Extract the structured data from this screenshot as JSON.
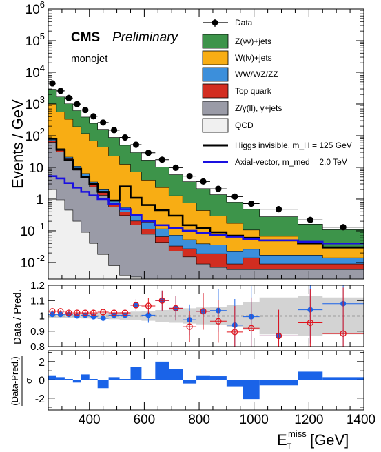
{
  "chart_data": [
    {
      "type": "area",
      "title": "",
      "xlabel": "E_T^miss [GeV]",
      "ylabel": "Events / GeV",
      "yscale": "log",
      "xlim": [
        250,
        1400
      ],
      "ylim": [
        0.003,
        1000000
      ],
      "y_ticks": [
        "10^-2",
        "10^-1",
        "1",
        "10",
        "10^2",
        "10^3",
        "10^4",
        "10^5",
        "10^6"
      ],
      "text": {
        "cms": "CMS",
        "preliminary": "Preliminary",
        "region": "monojet"
      },
      "bin_edges": [
        250,
        280,
        310,
        340,
        370,
        400,
        430,
        470,
        510,
        550,
        590,
        640,
        690,
        740,
        790,
        840,
        900,
        960,
        1020,
        1160,
        1250,
        1400
      ],
      "stack_order_bottom_to_top": [
        "QCD",
        "Z/γ(ll), γ+jets",
        "Top quark",
        "WW/WZ/ZZ",
        "W(lν)+jets",
        "Z(νν)+jets"
      ],
      "series": [
        {
          "name": "QCD",
          "color": "#f0f0f0",
          "values": [
            2.0,
            0.95,
            0.45,
            0.2,
            0.09,
            0.04,
            0.018,
            0.008,
            0.004,
            0.0035,
            0.003,
            0.003,
            0.003,
            0.003,
            0.003,
            0.003,
            0.003,
            0.003,
            0.003,
            0.003,
            0.003
          ]
        },
        {
          "name": "Z/γ(ll), γ+jets",
          "color": "#9a9ba7",
          "values": [
            60,
            30,
            16,
            8,
            4.5,
            2.4,
            1.3,
            0.55,
            0.3,
            0.15,
            0.075,
            0.04,
            0.02,
            0.012,
            0.006,
            0.004,
            0.003,
            0.003,
            0.003,
            0.003,
            0.003
          ]
        },
        {
          "name": "Top quark",
          "color": "#d22d20",
          "values": [
            8,
            4,
            2.2,
            1.2,
            0.8,
            0.45,
            0.28,
            0.14,
            0.09,
            0.05,
            0.035,
            0.022,
            0.01,
            0.012,
            0.01,
            0.012,
            0.003,
            0.008,
            0.003,
            0.003,
            0.003
          ]
        },
        {
          "name": "WW/WZ/ZZ",
          "color": "#3c8fdb",
          "values": [
            8,
            4,
            2.5,
            1.5,
            1.0,
            0.6,
            0.38,
            0.22,
            0.15,
            0.1,
            0.07,
            0.05,
            0.04,
            0.025,
            0.02,
            0.017,
            0.013,
            0.012,
            0.008,
            0.008,
            0.005
          ]
        },
        {
          "name": "W(lν)+jets",
          "color": "#f8ad14",
          "values": [
            940,
            530,
            310,
            180,
            110,
            66,
            42,
            22,
            12,
            7,
            3.8,
            2.2,
            1.2,
            0.7,
            0.4,
            0.26,
            0.15,
            0.08,
            0.05,
            0.025,
            0.014
          ]
        },
        {
          "name": "Z(νν)+jets",
          "color": "#3d944a",
          "values": [
            1900,
            1100,
            680,
            430,
            270,
            175,
            115,
            65,
            37,
            22,
            13,
            7.8,
            4.6,
            2.8,
            1.7,
            1.08,
            0.63,
            0.37,
            0.21,
            0.12,
            0.08
          ]
        }
      ],
      "data": {
        "name": "Data",
        "x": [
          265,
          295,
          325,
          355,
          385,
          415,
          450,
          490,
          530,
          570,
          615,
          665,
          715,
          765,
          815,
          870,
          930,
          990,
          1090,
          1205,
          1325
        ],
        "y": [
          4500,
          2600,
          1550,
          990,
          650,
          410,
          260,
          150,
          88,
          52,
          29,
          17.5,
          9.8,
          5.3,
          3.6,
          2.1,
          1.2,
          0.72,
          0.48,
          0.22,
          0.13
        ]
      },
      "signals": [
        {
          "name": "Higgs invisible, m_H = 125 GeV",
          "color": "#000000",
          "values": [
            80,
            36,
            17,
            9,
            5,
            3,
            1.7,
            0.9,
            2.5,
            1.1,
            0.65,
            0.45,
            0.3,
            0.15,
            0.12,
            0.09,
            0.07,
            0.06,
            0.05,
            0.04,
            0.03
          ]
        },
        {
          "name": "Axial-vector, m_med = 2.0 TeV",
          "color": "#1a10e0",
          "values": [
            5.3,
            4.5,
            3.2,
            2.3,
            1.7,
            1.3,
            1.0,
            0.7,
            0.48,
            0.32,
            0.2,
            0.15,
            0.12,
            0.1,
            0.085,
            0.075,
            0.065,
            0.055,
            0.05,
            0.045,
            0.04
          ]
        }
      ],
      "legend": {
        "placement": "top-right",
        "entries": [
          {
            "label": "Data",
            "style": "marker"
          },
          {
            "label": "Z(νν)+jets",
            "style": "fill",
            "color": "#3d944a"
          },
          {
            "label": "W(lν)+jets",
            "style": "fill",
            "color": "#f8ad14"
          },
          {
            "label": "WW/WZ/ZZ",
            "style": "fill",
            "color": "#3c8fdb"
          },
          {
            "label": "Top quark",
            "style": "fill",
            "color": "#d22d20"
          },
          {
            "label": "Z/γ(ll), γ+jets",
            "style": "fill",
            "color": "#9a9ba7"
          },
          {
            "label": "QCD",
            "style": "fill",
            "color": "#f0f0f0"
          },
          {
            "label": "Higgs invisible, m_H = 125 GeV",
            "style": "line",
            "color": "#000000"
          },
          {
            "label": "Axial-vector, m_med = 2.0 TeV",
            "style": "line",
            "color": "#1a10e0"
          }
        ]
      }
    },
    {
      "type": "scatter",
      "title": "",
      "ylabel": "Data / Pred.",
      "xlim": [
        250,
        1400
      ],
      "ylim": [
        0.8,
        1.2
      ],
      "y_ticks": [
        "0.8",
        "0.9",
        "1",
        "1.1",
        "1.2"
      ],
      "band": {
        "color": "#d3d3d3",
        "lo": [
          0.985,
          0.985,
          0.985,
          0.985,
          0.983,
          0.982,
          0.98,
          0.978,
          0.975,
          0.972,
          0.968,
          0.962,
          0.955,
          0.95,
          0.945,
          0.94,
          0.93,
          0.91,
          0.88,
          0.87,
          0.88
        ],
        "hi": [
          1.015,
          1.015,
          1.015,
          1.015,
          1.017,
          1.018,
          1.02,
          1.022,
          1.025,
          1.028,
          1.032,
          1.038,
          1.045,
          1.05,
          1.055,
          1.06,
          1.07,
          1.09,
          1.12,
          1.13,
          1.12
        ]
      },
      "series": [
        {
          "name": "postfit",
          "color": "#1a63e8",
          "marker": "filled-circle",
          "x": [
            265,
            295,
            325,
            355,
            385,
            415,
            450,
            490,
            530,
            570,
            615,
            665,
            715,
            765,
            815,
            870,
            930,
            990,
            1090,
            1205,
            1325
          ],
          "y": [
            1.01,
            1.01,
            1.01,
            1.0,
            1.005,
            0.995,
            0.985,
            1.005,
            1.005,
            1.07,
            1.005,
            1.1,
            1.05,
            0.975,
            1.03,
            1.035,
            0.94,
            0.995,
            0.87,
            1.04,
            1.08
          ],
          "yerr": [
            0.007,
            0.008,
            0.01,
            0.012,
            0.014,
            0.017,
            0.02,
            0.025,
            0.03,
            0.04,
            0.05,
            0.065,
            0.08,
            0.1,
            0.12,
            0.14,
            0.17,
            0.2,
            0.17,
            0.22,
            0.3
          ]
        },
        {
          "name": "prefit",
          "color": "#e0141c",
          "marker": "open-circle",
          "x": [
            265,
            295,
            325,
            355,
            385,
            415,
            450,
            490,
            530,
            570,
            615,
            665,
            715,
            765,
            815,
            870,
            930,
            990,
            1090,
            1205,
            1325
          ],
          "y": [
            1.03,
            1.03,
            1.02,
            1.02,
            1.02,
            1.02,
            1.025,
            1.02,
            1.02,
            1.07,
            1.065,
            1.1,
            1.05,
            0.93,
            1.03,
            0.965,
            0.895,
            0.92,
            0.87,
            0.955,
            0.885
          ],
          "yerr": [
            0.007,
            0.008,
            0.01,
            0.012,
            0.014,
            0.017,
            0.02,
            0.025,
            0.03,
            0.04,
            0.05,
            0.065,
            0.08,
            0.1,
            0.12,
            0.14,
            0.17,
            0.2,
            0.17,
            0.22,
            0.3
          ]
        }
      ]
    },
    {
      "type": "bar",
      "title": "",
      "xlabel": "E_T^miss [GeV]",
      "ylabel": "(Data-Pred.) / σ",
      "xlim": [
        250,
        1400
      ],
      "ylim": [
        -3.3,
        3.2
      ],
      "y_ticks": [
        "-2",
        "0",
        "2"
      ],
      "x_ticks": [
        "400",
        "600",
        "800",
        "1000",
        "1200",
        "1400"
      ],
      "color": "#1a63e8",
      "bin_edges": [
        250,
        280,
        310,
        340,
        370,
        400,
        430,
        470,
        510,
        550,
        590,
        640,
        690,
        740,
        790,
        840,
        900,
        960,
        1020,
        1160,
        1250,
        1400
      ],
      "values": [
        0.5,
        0.3,
        0.1,
        -0.3,
        0.6,
        0.1,
        -0.9,
        0.3,
        0.1,
        1.4,
        0.1,
        2.0,
        1.2,
        -0.4,
        0.5,
        0.4,
        -0.7,
        -2.1,
        -0.6,
        0.9,
        0.3
      ]
    }
  ]
}
